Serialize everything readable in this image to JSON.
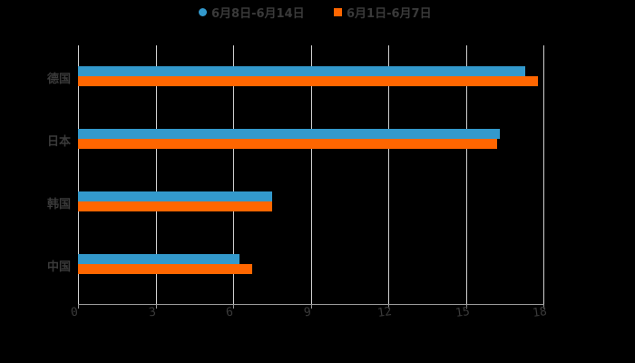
{
  "chart_data": {
    "type": "bar",
    "orientation": "horizontal",
    "title": "",
    "xlabel": "",
    "ylabel": "",
    "categories": [
      "德国",
      "日本",
      "韩国",
      "中国"
    ],
    "series": [
      {
        "name": "6月8日-6月14日",
        "color": "#3399cc",
        "values": [
          17.3,
          16.3,
          7.5,
          6.25
        ]
      },
      {
        "name": "6月1日-6月7日",
        "color": "#ff6600",
        "values": [
          17.8,
          16.2,
          7.5,
          6.75
        ]
      }
    ],
    "xlim": [
      0,
      18
    ],
    "x_ticks": [
      "0",
      "3",
      "6",
      "9",
      "12",
      "15",
      "18"
    ],
    "grid": true,
    "legend_position": "top"
  },
  "legend": {
    "items": [
      {
        "label": "6月8日-6月14日",
        "color": "#3399cc",
        "shape": "circle"
      },
      {
        "label": "6月1日-6月7日",
        "color": "#ff6600",
        "shape": "square"
      }
    ]
  }
}
